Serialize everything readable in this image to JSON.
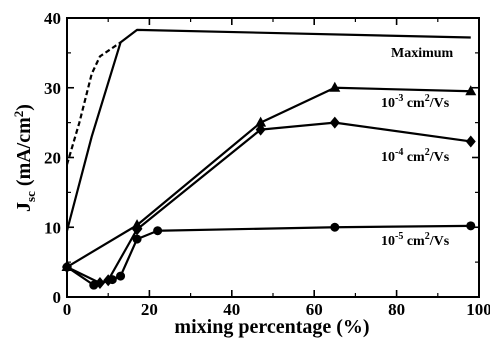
{
  "chart_data": {
    "type": "line",
    "title": "",
    "xlabel": "mixing percentage (%)",
    "ylabel_main": "J",
    "ylabel_sub": "sc",
    "ylabel_units": "(mA/cm",
    "ylabel_units_sup": "2",
    "ylabel_close": ")",
    "xlim": [
      0,
      100
    ],
    "ylim": [
      0,
      40
    ],
    "xticks": [
      0,
      20,
      40,
      60,
      80,
      100
    ],
    "yticks": [
      0,
      10,
      20,
      30,
      40
    ],
    "xtick_labels": [
      "0",
      "20",
      "40",
      "60",
      "80",
      "100"
    ],
    "ytick_labels": [
      "0",
      "10",
      "20",
      "30",
      "40"
    ],
    "grid": false,
    "series": [
      {
        "name": "Maximum",
        "style": "solid",
        "marker": "none",
        "points": [
          [
            0,
            9.5
          ],
          [
            6,
            23
          ],
          [
            13,
            36.5
          ],
          [
            17,
            38.3
          ],
          [
            98,
            37.2
          ]
        ],
        "label": {
          "pre": "Maximum",
          "base": "",
          "sup": "",
          "post": ""
        }
      },
      {
        "name": "dashed",
        "style": "dashed",
        "marker": "none",
        "points": [
          [
            0,
            19
          ],
          [
            3,
            25
          ],
          [
            6,
            32
          ],
          [
            8,
            34.5
          ],
          [
            10,
            35.3
          ],
          [
            13,
            36.5
          ]
        ]
      },
      {
        "name": "10-3 cm2/Vs",
        "style": "solid",
        "marker": "triangle",
        "points": [
          [
            0,
            4.3
          ],
          [
            17,
            10.3
          ],
          [
            47,
            25
          ],
          [
            65,
            30
          ],
          [
            98,
            29.5
          ]
        ],
        "label": {
          "pre": "",
          "base": "10",
          "sup": "-3",
          "post": " cm",
          "sup2": "2",
          "post2": "/Vs"
        }
      },
      {
        "name": "10-4 cm2/Vs",
        "style": "solid",
        "marker": "diamond",
        "points": [
          [
            0,
            4.3
          ],
          [
            8,
            2
          ],
          [
            10,
            2.4
          ],
          [
            17,
            9.7
          ],
          [
            47,
            24
          ],
          [
            65,
            25
          ],
          [
            98,
            22.3
          ]
        ],
        "label": {
          "pre": "",
          "base": "10",
          "sup": "-4",
          "post": " cm",
          "sup2": "2",
          "post2": "/Vs"
        }
      },
      {
        "name": "10-5 cm2/Vs",
        "style": "solid",
        "marker": "circle",
        "points": [
          [
            0,
            4.3
          ],
          [
            6.5,
            1.7
          ],
          [
            11,
            2.5
          ],
          [
            13,
            3
          ],
          [
            17,
            8.3
          ],
          [
            22,
            9.5
          ],
          [
            65,
            10
          ],
          [
            98,
            10.2
          ]
        ],
        "label": {
          "pre": "",
          "base": "10",
          "sup": "-5",
          "post": " cm",
          "sup2": "2",
          "post2": "/Vs"
        }
      }
    ]
  }
}
